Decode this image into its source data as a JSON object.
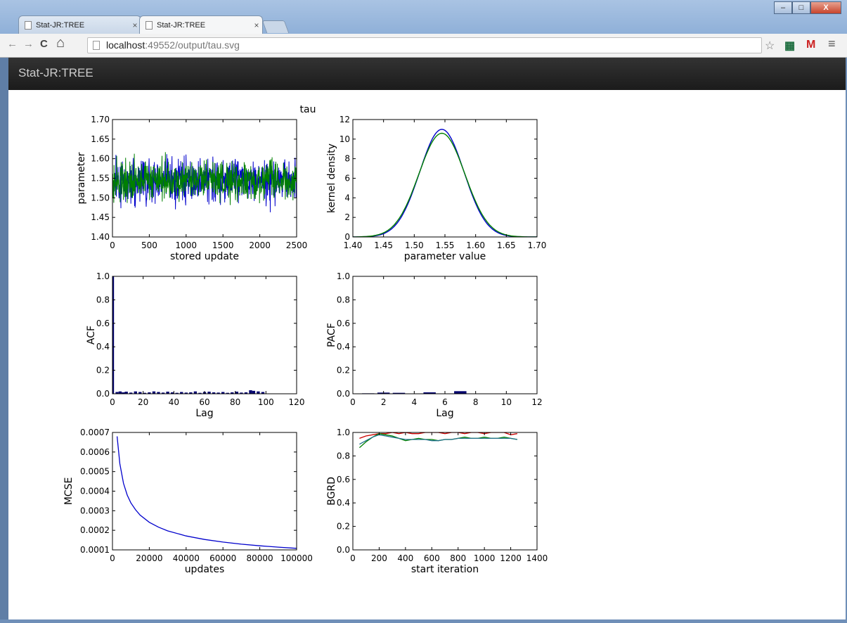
{
  "browser": {
    "tabs": [
      {
        "label": "Stat-JR:TREE",
        "close": "×",
        "active": false
      },
      {
        "label": "Stat-JR:TREE",
        "close": "×",
        "active": true
      }
    ],
    "window_buttons": {
      "minimize": "–",
      "maximize": "□",
      "close": "X"
    },
    "nav": {
      "back": "←",
      "forward": "→",
      "reload": "C",
      "home": "⌂"
    },
    "url": {
      "host": "localhost",
      "rest": ":49552/output/tau.svg"
    },
    "icons": {
      "star": "☆",
      "ext1": "▦",
      "gmail": "M",
      "menu": "≡"
    }
  },
  "app": {
    "brand": "Stat-JR:TREE"
  },
  "figure": {
    "title": "tau",
    "charts": [
      {
        "id": "trace",
        "chart_data": {
          "type": "line",
          "xlabel": "stored update",
          "ylabel": "parameter",
          "xlim": [
            0,
            2500
          ],
          "ylim": [
            1.4,
            1.7
          ],
          "xticks": [
            "0",
            "500",
            "1000",
            "1500",
            "2000",
            "2500"
          ],
          "yticks": [
            "1.40",
            "1.45",
            "1.50",
            "1.55",
            "1.60",
            "1.65",
            "1.70"
          ],
          "series": [
            {
              "color": "#0000cc",
              "mean": 1.545,
              "sd": 0.027
            },
            {
              "color": "#008000",
              "mean": 1.545,
              "sd": 0.025
            }
          ]
        }
      },
      {
        "id": "density",
        "chart_data": {
          "type": "line",
          "xlabel": "parameter value",
          "ylabel": "kernel density",
          "xlim": [
            1.4,
            1.7
          ],
          "ylim": [
            0,
            12
          ],
          "xticks": [
            "1.40",
            "1.45",
            "1.50",
            "1.55",
            "1.60",
            "1.65",
            "1.70"
          ],
          "yticks": [
            "0",
            "2",
            "4",
            "6",
            "8",
            "10",
            "12"
          ],
          "series": [
            {
              "color": "#0000cc",
              "peak_x": 1.545,
              "peak_y": 11.0,
              "sd": 0.036
            },
            {
              "color": "#008000",
              "peak_x": 1.545,
              "peak_y": 10.6,
              "sd": 0.0375
            }
          ]
        }
      },
      {
        "id": "acf",
        "chart_data": {
          "type": "bar",
          "xlabel": "Lag",
          "ylabel": "ACF",
          "xlim": [
            0,
            120
          ],
          "ylim": [
            0,
            1.0
          ],
          "xticks": [
            "0",
            "20",
            "40",
            "60",
            "80",
            "100",
            "120"
          ],
          "yticks": [
            "0.0",
            "0.2",
            "0.4",
            "0.6",
            "0.8",
            "1.0"
          ],
          "x": [
            0,
            3,
            5,
            7,
            9,
            12,
            15,
            18,
            21,
            24,
            27,
            30,
            33,
            36,
            39,
            42,
            45,
            48,
            51,
            54,
            57,
            60,
            63,
            66,
            69,
            72,
            75,
            78,
            81,
            84,
            87,
            90,
            92,
            95,
            98
          ],
          "values": [
            1.0,
            0.015,
            0.02,
            0.012,
            0.018,
            0.01,
            0.02,
            0.015,
            0.008,
            0.012,
            0.02,
            0.015,
            0.01,
            0.018,
            0.012,
            0.008,
            0.015,
            0.01,
            0.012,
            0.02,
            0.008,
            0.015,
            0.018,
            0.012,
            0.01,
            0.015,
            0.008,
            0.012,
            0.018,
            0.01,
            0.012,
            0.03,
            0.025,
            0.02,
            0.015
          ],
          "color": "#00006e"
        }
      },
      {
        "id": "pacf",
        "chart_data": {
          "type": "bar",
          "xlabel": "Lag",
          "ylabel": "PACF",
          "xlim": [
            0,
            12
          ],
          "ylim": [
            0,
            1.0
          ],
          "xticks": [
            "0",
            "2",
            "4",
            "6",
            "8",
            "10",
            "12"
          ],
          "yticks": [
            "0.0",
            "0.2",
            "0.4",
            "0.6",
            "0.8",
            "1.0"
          ],
          "x": [
            1,
            2,
            3,
            4,
            5,
            6,
            7,
            8,
            9,
            10
          ],
          "values": [
            0.004,
            0.01,
            0.008,
            0.002,
            0.012,
            0.003,
            0.022,
            0.002,
            0.003,
            0.002
          ],
          "color": "#00006e"
        }
      },
      {
        "id": "mcse",
        "chart_data": {
          "type": "line",
          "xlabel": "updates",
          "ylabel": "MCSE",
          "xlim": [
            0,
            100000
          ],
          "ylim": [
            0.0001,
            0.0007
          ],
          "xticks": [
            "0",
            "20000",
            "40000",
            "60000",
            "80000",
            "100000"
          ],
          "yticks": [
            "0.0001",
            "0.0002",
            "0.0003",
            "0.0004",
            "0.0005",
            "0.0006",
            "0.0007"
          ],
          "series": [
            {
              "color": "#0000cc",
              "x": [
                2500,
                4000,
                6000,
                8000,
                10000,
                12500,
                15000,
                20000,
                25000,
                30000,
                40000,
                50000,
                60000,
                70000,
                80000,
                90000,
                100000
              ],
              "y": [
                0.00068,
                0.00054,
                0.00044,
                0.00038,
                0.00034,
                0.000305,
                0.000278,
                0.000241,
                0.000216,
                0.000197,
                0.000171,
                0.000153,
                0.00014,
                0.000129,
                0.000121,
                0.000114,
                0.000108
              ]
            }
          ]
        }
      },
      {
        "id": "bgrd",
        "chart_data": {
          "type": "line",
          "xlabel": "start iteration",
          "ylabel": "BGRD",
          "xlim": [
            0,
            1400
          ],
          "ylim": [
            0,
            1.0
          ],
          "xticks": [
            "0",
            "200",
            "400",
            "600",
            "800",
            "1000",
            "1200",
            "1400"
          ],
          "yticks": [
            "0.0",
            "0.2",
            "0.4",
            "0.6",
            "0.8",
            "1.0"
          ],
          "series": [
            {
              "color": "#cc0000",
              "x": [
                50,
                100,
                150,
                200,
                250,
                300,
                350,
                400,
                450,
                500,
                550,
                600,
                650,
                700,
                750,
                800,
                850,
                900,
                950,
                1000,
                1050,
                1100,
                1150,
                1200,
                1250
              ],
              "y": [
                0.95,
                0.97,
                0.98,
                0.99,
                0.99,
                1.0,
                0.99,
                1.0,
                0.99,
                0.99,
                1.0,
                1.0,
                1.0,
                0.99,
                1.0,
                1.0,
                0.99,
                1.0,
                1.0,
                0.99,
                1.0,
                1.0,
                1.0,
                0.98,
                0.99
              ]
            },
            {
              "color": "#008000",
              "x": [
                50,
                100,
                150,
                200,
                250,
                300,
                350,
                400,
                450,
                500,
                550,
                600,
                650,
                700,
                750,
                800,
                850,
                900,
                950,
                1000,
                1050,
                1100,
                1150,
                1200,
                1250
              ],
              "y": [
                0.87,
                0.92,
                0.96,
                0.99,
                0.98,
                0.97,
                0.95,
                0.93,
                0.94,
                0.95,
                0.94,
                0.94,
                0.93,
                0.94,
                0.94,
                0.95,
                0.96,
                0.95,
                0.95,
                0.96,
                0.95,
                0.95,
                0.96,
                0.95,
                0.94
              ]
            },
            {
              "color": "#1f6f8b",
              "x": [
                50,
                100,
                150,
                200,
                250,
                300,
                350,
                400,
                450,
                500,
                550,
                600,
                650,
                700,
                750,
                800,
                850,
                900,
                950,
                1000,
                1050,
                1100,
                1150,
                1200,
                1250
              ],
              "y": [
                0.9,
                0.93,
                0.96,
                0.98,
                0.97,
                0.96,
                0.95,
                0.94,
                0.94,
                0.94,
                0.94,
                0.93,
                0.93,
                0.94,
                0.94,
                0.95,
                0.95,
                0.95,
                0.95,
                0.95,
                0.95,
                0.95,
                0.95,
                0.95,
                0.94
              ]
            }
          ]
        }
      }
    ]
  }
}
